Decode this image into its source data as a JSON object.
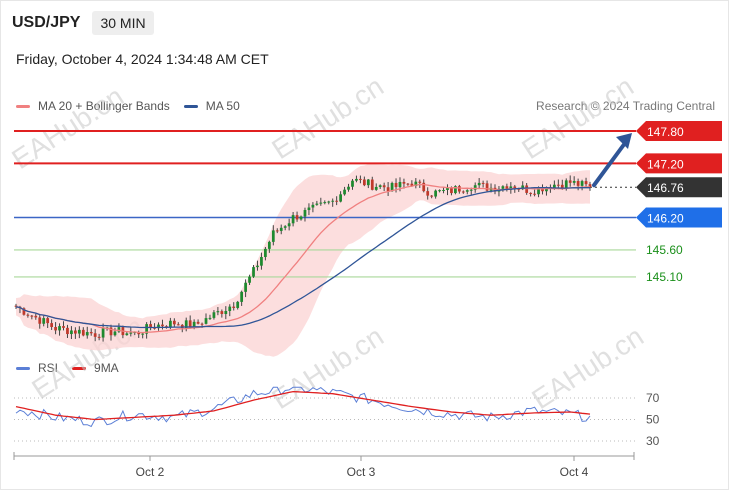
{
  "header": {
    "symbol": "USD/JPY",
    "timeframe": "30 MIN",
    "datetime": "Friday, October 4, 2024 1:34:48 AM CET"
  },
  "legend": {
    "ma20_bb": {
      "label": "MA 20 + Bollinger Bands",
      "color": "#f08080"
    },
    "ma50": {
      "label": "MA 50",
      "color": "#2f5597"
    }
  },
  "rsi_legend": {
    "rsi": {
      "label": "RSI",
      "color": "#5b7fd6"
    },
    "ma9": {
      "label": "9MA",
      "color": "#e02020"
    }
  },
  "credit": "Research © 2024 Trading Central",
  "watermark": "EAHub.cn",
  "chart_data": [
    {
      "type": "candlestick",
      "title": "USD/JPY 30 MIN",
      "ylim": [
        144.1,
        148.1
      ],
      "x_ticks": [
        "Oct 2",
        "Oct 3",
        "Oct 4"
      ],
      "current_price": {
        "value": "146.76",
        "color": "#333333"
      },
      "levels": [
        {
          "value": "147.80",
          "type": "resistance",
          "color": "#e02020"
        },
        {
          "value": "147.20",
          "type": "resistance",
          "color": "#e02020"
        },
        {
          "value": "146.20",
          "type": "pivot",
          "color": "#1f6fe8"
        },
        {
          "value": "145.60",
          "type": "support",
          "color": "#1a8f1a"
        },
        {
          "value": "145.10",
          "type": "support",
          "color": "#1a8f1a"
        }
      ],
      "anchors": [
        [
          0,
          144.55
        ],
        [
          5,
          144.35
        ],
        [
          10,
          144.15
        ],
        [
          15,
          144.1
        ],
        [
          20,
          144.05
        ],
        [
          25,
          144.1
        ],
        [
          30,
          144.05
        ],
        [
          35,
          144.2
        ],
        [
          40,
          144.25
        ],
        [
          45,
          144.2
        ],
        [
          50,
          144.4
        ],
        [
          55,
          144.6
        ],
        [
          60,
          145.2
        ],
        [
          65,
          145.9
        ],
        [
          70,
          146.2
        ],
        [
          75,
          146.35
        ],
        [
          80,
          146.5
        ],
        [
          85,
          146.9
        ],
        [
          90,
          146.8
        ],
        [
          95,
          146.75
        ],
        [
          100,
          146.85
        ],
        [
          105,
          146.65
        ],
        [
          110,
          146.7
        ],
        [
          115,
          146.8
        ],
        [
          120,
          146.75
        ],
        [
          125,
          146.8
        ],
        [
          130,
          146.7
        ],
        [
          135,
          146.8
        ],
        [
          140,
          146.85
        ],
        [
          145,
          146.76
        ]
      ],
      "series": [
        {
          "name": "MA 20 + Bollinger Bands",
          "color": "#f08080"
        },
        {
          "name": "MA 50",
          "color": "#2f5597"
        }
      ],
      "projection": {
        "from": 146.76,
        "to": 147.8,
        "color": "#2f5597"
      }
    },
    {
      "type": "line",
      "title": "RSI",
      "ylim": [
        25,
        80
      ],
      "y_ticks": [
        70,
        50,
        30
      ],
      "series": [
        {
          "name": "RSI",
          "color": "#5b7fd6",
          "anchors": [
            [
              0,
              60
            ],
            [
              10,
              52
            ],
            [
              20,
              48
            ],
            [
              30,
              55
            ],
            [
              40,
              52
            ],
            [
              50,
              60
            ],
            [
              60,
              74
            ],
            [
              70,
              80
            ],
            [
              80,
              75
            ],
            [
              90,
              68
            ],
            [
              100,
              60
            ],
            [
              110,
              55
            ],
            [
              120,
              52
            ],
            [
              130,
              58
            ],
            [
              140,
              55
            ],
            [
              145,
              52
            ]
          ]
        },
        {
          "name": "9MA",
          "color": "#e02020",
          "anchors": [
            [
              0,
              62
            ],
            [
              10,
              54
            ],
            [
              20,
              50
            ],
            [
              30,
              52
            ],
            [
              40,
              54
            ],
            [
              50,
              58
            ],
            [
              60,
              68
            ],
            [
              70,
              76
            ],
            [
              80,
              74
            ],
            [
              90,
              68
            ],
            [
              100,
              62
            ],
            [
              110,
              57
            ],
            [
              120,
              54
            ],
            [
              130,
              56
            ],
            [
              140,
              57
            ],
            [
              145,
              55
            ]
          ]
        }
      ]
    }
  ]
}
